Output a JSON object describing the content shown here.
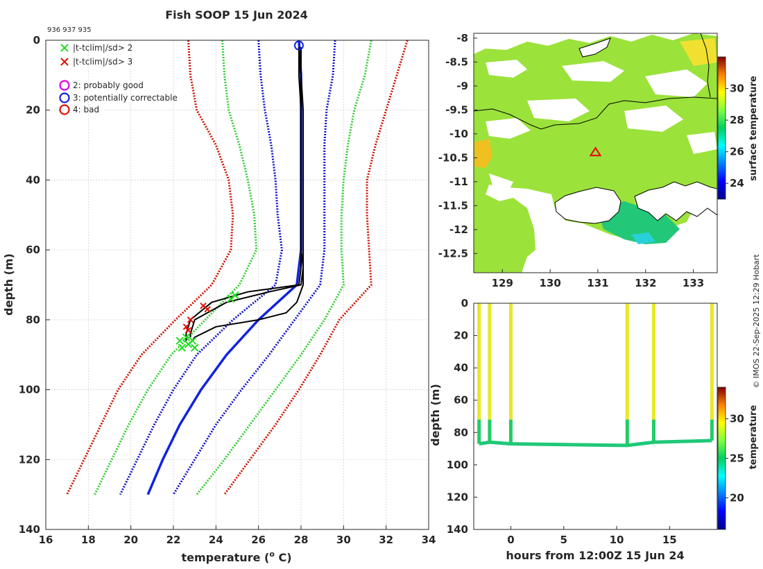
{
  "colors": {
    "flag_green": "#22dd22",
    "flag_red": "#dd1100",
    "clim_red": "#cc1100",
    "clim_green": "#33cc33",
    "clim_blue": "#1111cc",
    "mean_blue": "#1122dd",
    "profile_black": "#000000",
    "good_magenta": "#dd00dd",
    "land_white": "#ffffff",
    "coast": "#000000",
    "cursor_red": "#ee0000"
  },
  "chart_data": [
    {
      "type": "line",
      "name": "profile-panel",
      "title": "Fish SOOP 15 Jun 2024",
      "subtitle": "936 937 935",
      "xlabel": "temperature (° C)",
      "xlabel_main": "temperature (",
      "xlabel_sup": "o",
      "xlabel_tail": " C)",
      "ylabel": "depth (m)",
      "xlim": [
        16,
        34
      ],
      "ylim": [
        140,
        0
      ],
      "xticks": [
        16,
        18,
        20,
        22,
        24,
        26,
        28,
        30,
        32,
        34
      ],
      "yticks": [
        0,
        20,
        40,
        60,
        80,
        100,
        120,
        140
      ],
      "grid": true,
      "legend": {
        "position": "top-left",
        "entries": [
          {
            "marker": "x",
            "color": "flag_green",
            "label": "|t-tclim|/sd> 2"
          },
          {
            "marker": "x",
            "color": "flag_red",
            "label": "|t-tclim|/sd> 3"
          },
          {
            "marker": "o",
            "color": "good_magenta",
            "label": "2: probably good"
          },
          {
            "marker": "o",
            "color": "mean_blue",
            "label": "3: potentially correctable"
          },
          {
            "marker": "o",
            "color": "flag_red",
            "label": "4: bad"
          }
        ]
      },
      "climatology": {
        "depth": [
          0,
          10,
          20,
          30,
          40,
          50,
          60,
          70,
          80,
          90,
          100,
          110,
          120,
          130
        ],
        "mean": [
          27.9,
          28.0,
          28.0,
          28.0,
          28.0,
          28.0,
          28.0,
          27.8,
          26.0,
          24.5,
          23.3,
          22.3,
          21.5,
          20.8
        ],
        "series": [
          {
            "name": "-3sd",
            "color": "clim_red",
            "style": "dotted",
            "temps": [
              22.7,
              22.8,
              23.1,
              24.0,
              24.6,
              24.8,
              24.7,
              23.8,
              22.1,
              20.5,
              19.4,
              18.6,
              17.8,
              17.0
            ]
          },
          {
            "name": "-2sd",
            "color": "clim_green",
            "style": "dotted",
            "temps": [
              24.3,
              24.4,
              24.6,
              25.1,
              25.5,
              25.8,
              25.9,
              25.1,
              23.5,
              21.9,
              20.8,
              19.9,
              19.1,
              18.3
            ]
          },
          {
            "name": "-1sd",
            "color": "clim_blue",
            "style": "dotted",
            "temps": [
              26.0,
              26.1,
              26.3,
              26.6,
              26.8,
              26.9,
              27.1,
              26.8,
              24.8,
              23.1,
              22.0,
              21.1,
              20.3,
              19.5
            ]
          },
          {
            "name": "+1sd",
            "color": "clim_blue",
            "style": "dotted",
            "temps": [
              29.6,
              29.5,
              29.2,
              29.1,
              29.1,
              29.1,
              29.1,
              28.9,
              27.7,
              26.5,
              25.2,
              24.0,
              23.0,
              22.0
            ]
          },
          {
            "name": "+2sd",
            "color": "clim_green",
            "style": "dotted",
            "temps": [
              31.3,
              31.0,
              30.5,
              30.2,
              30.0,
              29.9,
              29.9,
              30.0,
              29.1,
              28.0,
              26.8,
              25.6,
              24.4,
              23.1
            ]
          },
          {
            "name": "+3sd",
            "color": "clim_red",
            "style": "dotted",
            "temps": [
              33.0,
              32.5,
              32.0,
              31.5,
              31.1,
              31.1,
              31.2,
              31.3,
              29.8,
              28.9,
              27.9,
              26.8,
              25.6,
              24.4
            ]
          }
        ]
      },
      "profiles": [
        {
          "id": "936",
          "depth": [
            2,
            10,
            20,
            40,
            60,
            65,
            70,
            72,
            75,
            80,
            84,
            85
          ],
          "temps": [
            27.9,
            27.9,
            28.0,
            28.0,
            28.0,
            28.1,
            28.0,
            26.5,
            24.5,
            23.0,
            22.8,
            22.8
          ]
        },
        {
          "id": "937",
          "depth": [
            2,
            10,
            20,
            40,
            60,
            65,
            70,
            72,
            75,
            80,
            84,
            86
          ],
          "temps": [
            27.9,
            28.0,
            28.0,
            28.0,
            28.0,
            28.0,
            27.9,
            25.5,
            23.8,
            22.8,
            22.6,
            22.6
          ]
        },
        {
          "id": "935",
          "depth": [
            2,
            10,
            20,
            40,
            60,
            65,
            70,
            75,
            78,
            80,
            82,
            85,
            86
          ],
          "temps": [
            28.0,
            28.0,
            28.1,
            28.1,
            28.1,
            28.1,
            28.1,
            27.8,
            27.3,
            26.0,
            24.0,
            23.0,
            22.9
          ]
        }
      ],
      "flags_sd3": [
        {
          "t": 23.6,
          "d": 77
        },
        {
          "t": 23.4,
          "d": 76
        },
        {
          "t": 22.8,
          "d": 80
        },
        {
          "t": 22.6,
          "d": 82
        },
        {
          "t": 22.7,
          "d": 83
        }
      ],
      "flags_sd2": [
        {
          "t": 24.9,
          "d": 73
        },
        {
          "t": 24.7,
          "d": 74
        },
        {
          "t": 22.6,
          "d": 85
        },
        {
          "t": 22.9,
          "d": 86
        },
        {
          "t": 22.4,
          "d": 88
        },
        {
          "t": 22.7,
          "d": 87
        },
        {
          "t": 22.3,
          "d": 86
        },
        {
          "t": 23.0,
          "d": 88
        }
      ],
      "surface_marker": {
        "t": 27.9,
        "d": 1.5
      }
    },
    {
      "type": "heatmap",
      "name": "sst-map",
      "xlim": [
        128.4,
        133.5
      ],
      "ylim": [
        -12.9,
        -7.9
      ],
      "xticks": [
        129,
        130,
        131,
        132,
        133
      ],
      "yticks": [
        -8,
        -8.5,
        -9,
        -9.5,
        -10,
        -10.5,
        -11,
        -11.5,
        -12,
        -12.5
      ],
      "colorbar": {
        "label": "surface temperature",
        "range": [
          23,
          32
        ],
        "ticks": [
          24,
          26,
          28,
          30
        ]
      },
      "marker": {
        "type": "triangle",
        "lon": 130.95,
        "lat": -10.38
      }
    },
    {
      "type": "scatter",
      "name": "depth-time",
      "xlabel": "hours from 12:00Z 15 Jun 24",
      "ylabel": "depth (m)",
      "xlim": [
        -3.5,
        19.5
      ],
      "ylim": [
        140,
        0
      ],
      "xticks": [
        0,
        5,
        10,
        15
      ],
      "yticks": [
        0,
        20,
        40,
        60,
        80,
        100,
        120,
        140
      ],
      "colorbar": {
        "label": "temperature",
        "range": [
          16,
          34
        ],
        "ticks": [
          20,
          25,
          30
        ]
      },
      "casts": [
        {
          "hours": -3,
          "bottom": 87
        },
        {
          "hours": -2,
          "bottom": 86
        },
        {
          "hours": 0,
          "bottom": 87
        },
        {
          "hours": 11,
          "bottom": 88
        },
        {
          "hours": 13.5,
          "bottom": 86
        },
        {
          "hours": 19,
          "bottom": 85
        }
      ],
      "thermocline_depth": 72
    }
  ],
  "watermark": "© IMOS 22-Sep-2025 12:29 Hobart"
}
